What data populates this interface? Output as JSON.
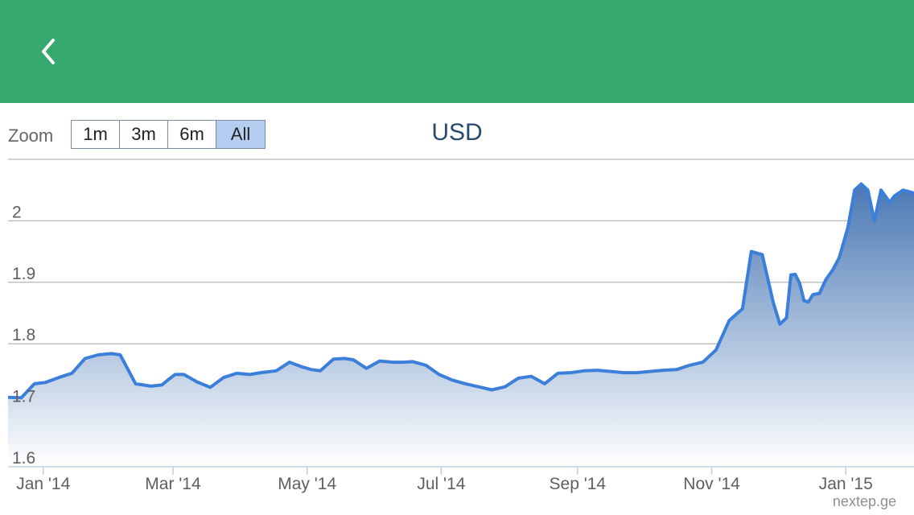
{
  "header": {
    "back_icon": "chevron-left-icon",
    "background": "#36a96e"
  },
  "zoom": {
    "label": "Zoom",
    "buttons": [
      "1m",
      "3m",
      "6m",
      "All"
    ],
    "active": "All"
  },
  "credits": "nextep.ge",
  "chart_data": {
    "type": "area",
    "title": "USD",
    "xlabel": "",
    "ylabel": "",
    "ylim": [
      1.6,
      2.1
    ],
    "yticks": [
      1.6,
      1.7,
      1.8,
      1.9,
      2.0
    ],
    "ytick_labels": [
      "1.6",
      "1.7",
      "1.8",
      "1.9",
      "2"
    ],
    "xticks": [
      "2014-01-01",
      "2014-03-01",
      "2014-05-01",
      "2014-07-01",
      "2014-09-01",
      "2014-11-01",
      "2015-01-01"
    ],
    "xtick_labels": [
      "Jan '14",
      "Mar '14",
      "May '14",
      "Jul '14",
      "Sep '14",
      "Nov '14",
      "Jan '15"
    ],
    "xlim": [
      "2013-12-16",
      "2015-02-01"
    ],
    "grid": true,
    "line_color": "#3b7fdb",
    "fill_top_color": "#4a78b4",
    "fill_bottom_color": "#ffffff",
    "x": [
      "2013-12-16",
      "2013-12-22",
      "2013-12-28",
      "2014-01-02",
      "2014-01-08",
      "2014-01-14",
      "2014-01-20",
      "2014-01-26",
      "2014-02-01",
      "2014-02-05",
      "2014-02-12",
      "2014-02-19",
      "2014-02-24",
      "2014-02-27",
      "2014-03-02",
      "2014-03-06",
      "2014-03-12",
      "2014-03-18",
      "2014-03-24",
      "2014-03-30",
      "2014-04-05",
      "2014-04-10",
      "2014-04-17",
      "2014-04-23",
      "2014-04-29",
      "2014-05-03",
      "2014-05-07",
      "2014-05-13",
      "2014-05-18",
      "2014-05-22",
      "2014-05-28",
      "2014-06-03",
      "2014-06-09",
      "2014-06-14",
      "2014-06-18",
      "2014-06-24",
      "2014-06-30",
      "2014-07-06",
      "2014-07-12",
      "2014-07-18",
      "2014-07-24",
      "2014-07-30",
      "2014-08-05",
      "2014-08-11",
      "2014-08-17",
      "2014-08-23",
      "2014-08-29",
      "2014-09-04",
      "2014-09-10",
      "2014-09-16",
      "2014-09-22",
      "2014-09-28",
      "2014-10-04",
      "2014-10-10",
      "2014-10-16",
      "2014-10-22",
      "2014-10-28",
      "2014-11-03",
      "2014-11-09",
      "2014-11-15",
      "2014-11-19",
      "2014-11-24",
      "2014-11-29",
      "2014-12-02",
      "2014-12-05",
      "2014-12-07",
      "2014-12-09",
      "2014-12-11",
      "2014-12-13",
      "2014-12-15",
      "2014-12-17",
      "2014-12-20",
      "2014-12-23",
      "2014-12-26",
      "2014-12-29",
      "2015-01-02",
      "2015-01-05",
      "2015-01-08",
      "2015-01-11",
      "2015-01-14",
      "2015-01-17",
      "2015-01-19",
      "2015-01-21",
      "2015-01-23",
      "2015-01-25",
      "2015-01-27",
      "2015-01-29",
      "2015-02-01"
    ],
    "series": [
      {
        "values": [
          1.713,
          1.712,
          1.735,
          1.737,
          1.745,
          1.752,
          1.776,
          1.782,
          1.784,
          1.782,
          1.735,
          1.731,
          1.733,
          1.742,
          1.75,
          1.75,
          1.738,
          1.729,
          1.745,
          1.752,
          1.75,
          1.753,
          1.756,
          1.77,
          1.762,
          1.758,
          1.756,
          1.775,
          1.776,
          1.774,
          1.76,
          1.772,
          1.77,
          1.77,
          1.771,
          1.765,
          1.75,
          1.741,
          1.735,
          1.73,
          1.725,
          1.73,
          1.744,
          1.747,
          1.735,
          1.752,
          1.753,
          1.756,
          1.757,
          1.755,
          1.753,
          1.753,
          1.755,
          1.757,
          1.758,
          1.765,
          1.77,
          1.79,
          1.838,
          1.857,
          1.95,
          1.945,
          1.867,
          1.832,
          1.842,
          1.912,
          1.913,
          1.898,
          1.87,
          1.868,
          1.88,
          1.882,
          1.905,
          1.92,
          1.94,
          1.99,
          2.05,
          2.06,
          2.05,
          2.0,
          2.05,
          2.04,
          2.03,
          2.04,
          2.045,
          2.05,
          2.048,
          2.045
        ]
      }
    ]
  }
}
